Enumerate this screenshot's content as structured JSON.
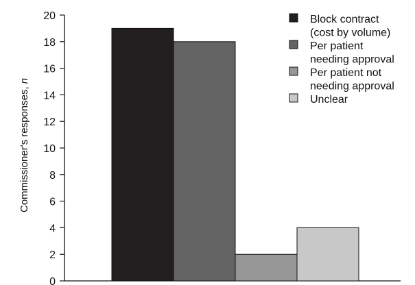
{
  "chart_data": {
    "type": "bar",
    "title": "",
    "xlabel": "",
    "ylabel": "Commissioner's responses, ",
    "ylabel_var": "n",
    "ylim": [
      0,
      20
    ],
    "yticks": [
      0,
      2,
      4,
      6,
      8,
      10,
      12,
      14,
      16,
      18,
      20
    ],
    "grid": false,
    "legend_position": "top-right",
    "categories": [
      "Block contract (cost by volume)",
      "Per patient needing approval",
      "Per patient not needing approval",
      "Unclear"
    ],
    "values": [
      19,
      18,
      2,
      4
    ],
    "colors": [
      "#231f20",
      "#636363",
      "#969696",
      "#c8c8c8"
    ],
    "legend": [
      {
        "lines": [
          "Block contract",
          "(cost by volume)"
        ],
        "color": "#231f20"
      },
      {
        "lines": [
          "Per patient",
          "needing approval"
        ],
        "color": "#636363"
      },
      {
        "lines": [
          "Per patient not",
          "needing approval"
        ],
        "color": "#969696"
      },
      {
        "lines": [
          "Unclear"
        ],
        "color": "#c8c8c8"
      }
    ]
  }
}
